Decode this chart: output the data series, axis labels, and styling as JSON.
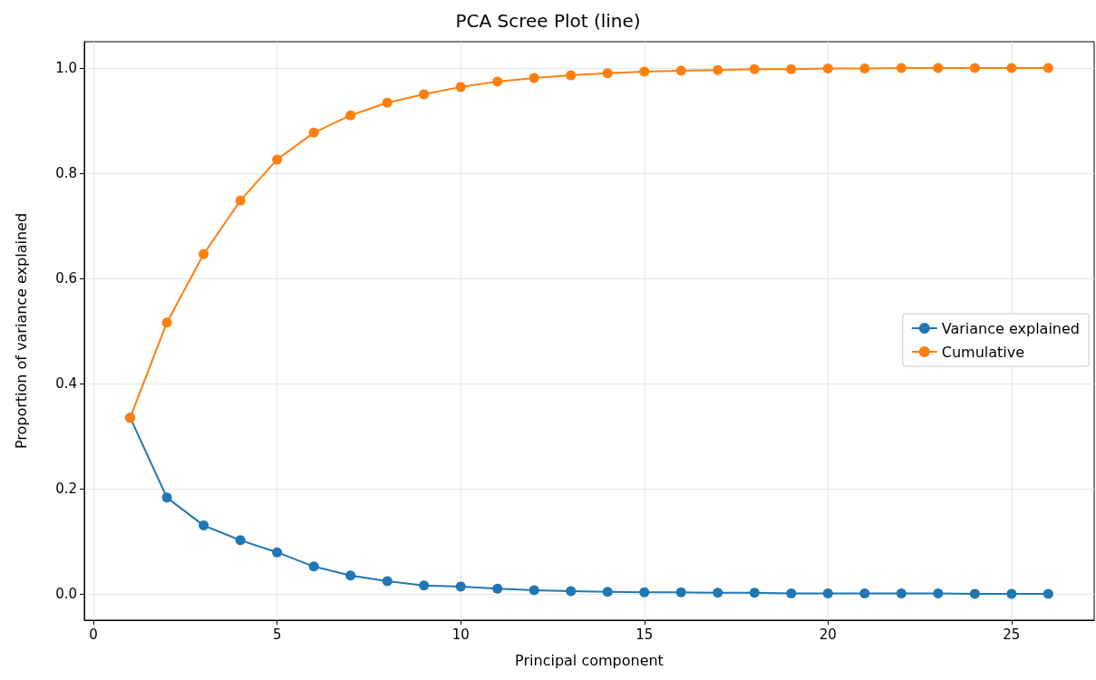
{
  "chart_data": {
    "type": "line",
    "title": "PCA Scree Plot (line)",
    "xlabel": "Principal component",
    "ylabel": "Proportion of variance explained",
    "x": [
      1,
      2,
      3,
      4,
      5,
      6,
      7,
      8,
      9,
      10,
      11,
      12,
      13,
      14,
      15,
      16,
      17,
      18,
      19,
      20,
      21,
      22,
      23,
      24,
      25,
      26
    ],
    "series": [
      {
        "name": "Variance explained",
        "color": "#1f77b4",
        "values": [
          0.335,
          0.183,
          0.13,
          0.102,
          0.079,
          0.052,
          0.035,
          0.024,
          0.016,
          0.014,
          0.01,
          0.007,
          0.005,
          0.004,
          0.003,
          0.003,
          0.002,
          0.002,
          0.001,
          0.001,
          0.001,
          0.001,
          0.001,
          0.0,
          0.0,
          0.0
        ]
      },
      {
        "name": "Cumulative",
        "color": "#ff7f0e",
        "values": [
          0.335,
          0.516,
          0.646,
          0.748,
          0.826,
          0.877,
          0.91,
          0.934,
          0.95,
          0.964,
          0.974,
          0.981,
          0.986,
          0.99,
          0.993,
          0.995,
          0.996,
          0.998,
          0.998,
          0.999,
          0.999,
          1.0,
          1.0,
          1.0,
          1.0,
          1.0
        ]
      }
    ],
    "xlim": [
      -0.25,
      27.25
    ],
    "ylim": [
      -0.05,
      1.05
    ],
    "xticks": [
      0,
      5,
      10,
      15,
      20,
      25
    ],
    "yticks": [
      {
        "value": 0,
        "label": "0.0"
      },
      0.2,
      0.4,
      0.6,
      0.8,
      {
        "value": 1,
        "label": "1.0"
      }
    ],
    "grid": true,
    "legend": "right",
    "marker": "circle",
    "line_style": "solid"
  }
}
